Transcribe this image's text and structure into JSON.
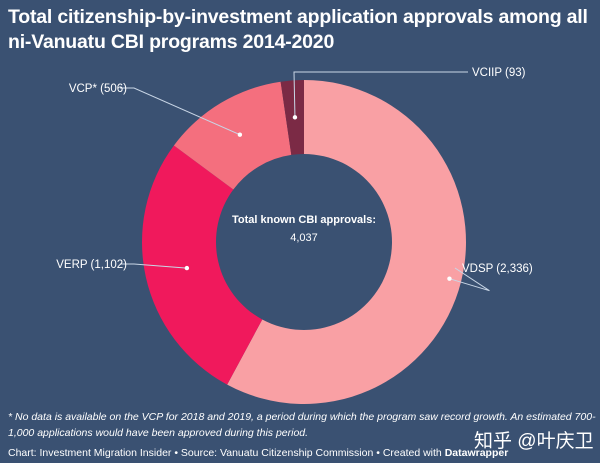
{
  "title": "Total citizenship-by-investment application approvals among all ni-Vanuatu CBI programs 2014-2020",
  "chart_data": {
    "type": "pie",
    "donut": true,
    "categories": [
      "VDSP",
      "VERP",
      "VCP*",
      "VCIIP"
    ],
    "values": [
      2336,
      1102,
      506,
      93
    ],
    "labels": [
      "VDSP (2,336)",
      "VERP (1,102)",
      "VCP* (506)",
      "VCIIP (93)"
    ],
    "colors": [
      "#f9a0a4",
      "#f0195c",
      "#f46f7e",
      "#7b2a45"
    ],
    "center_label": "Total known CBI approvals:",
    "center_value": "4,037"
  },
  "note": "* No data is available on the VCP for 2018 and 2019, a period during which the program saw record growth. An estimated 700-1,000 applications would have been approved during this period.",
  "credit": {
    "text": "Chart: Investment Migration Insider • Source: Vanuatu Citizenship Commission • Created with ",
    "brand": "Datawrapper"
  },
  "watermark": "知乎 @叶庆卫"
}
